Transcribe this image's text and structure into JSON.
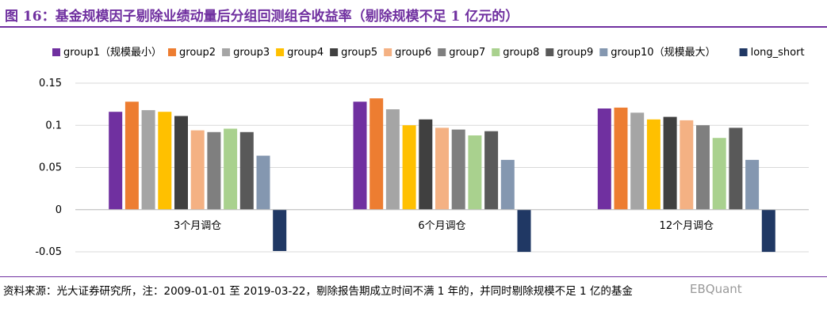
{
  "figure": {
    "title": "图 16：基金规模因子剔除业绩动量后分组回测组合收益率（剔除规模不足 1 亿元的）",
    "source": "资料来源：光大证券研究所，注：2009-01-01 至 2019-03-22，剔除报告期成立时间不满 1 年的，并同时剔除规模不足 1 亿的基金",
    "watermark": "EBQuant"
  },
  "chart_data": {
    "type": "bar",
    "categories": [
      "3个月调仓",
      "6个月调仓",
      "12个月调仓"
    ],
    "series": [
      {
        "name": "group1（规模最小）",
        "color": "#7030A0",
        "values": [
          0.116,
          0.128,
          0.12
        ]
      },
      {
        "name": "group2",
        "color": "#ED7D31",
        "values": [
          0.128,
          0.132,
          0.121
        ]
      },
      {
        "name": "group3",
        "color": "#A5A5A5",
        "values": [
          0.118,
          0.119,
          0.115
        ]
      },
      {
        "name": "group4",
        "color": "#FFC000",
        "values": [
          0.116,
          0.1,
          0.107
        ]
      },
      {
        "name": "group5",
        "color": "#404040",
        "values": [
          0.111,
          0.107,
          0.11
        ]
      },
      {
        "name": "group6",
        "color": "#F4B183",
        "values": [
          0.094,
          0.097,
          0.106
        ]
      },
      {
        "name": "group7",
        "color": "#7F7F7F",
        "values": [
          0.092,
          0.095,
          0.1
        ]
      },
      {
        "name": "group8",
        "color": "#A9D18E",
        "values": [
          0.096,
          0.088,
          0.085
        ]
      },
      {
        "name": "group9",
        "color": "#595959",
        "values": [
          0.092,
          0.093,
          0.097
        ]
      },
      {
        "name": "group10（规模最大）",
        "color": "#8497B0",
        "values": [
          0.064,
          0.059,
          0.059
        ]
      },
      {
        "name": "long_short",
        "color": "#203864",
        "values": [
          -0.049,
          -0.05,
          -0.05
        ]
      }
    ],
    "yticks": [
      "0.15",
      "0.1",
      "0.05",
      "0",
      "-0.05"
    ],
    "ylim": [
      -0.05,
      0.15
    ],
    "grid": true,
    "legend_position": "top"
  }
}
